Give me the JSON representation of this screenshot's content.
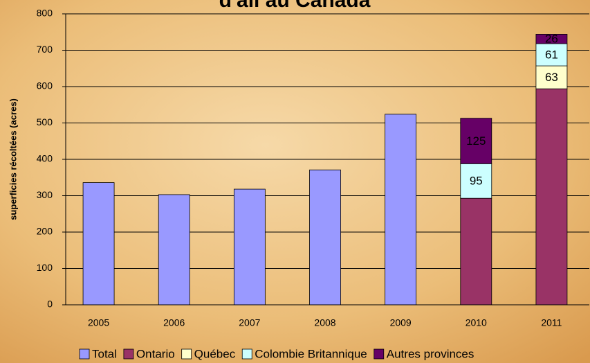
{
  "chart_data": {
    "type": "stacked_bar",
    "title": "d'ail au Canada",
    "y_label": "superficies récoltées (acres)",
    "categories": [
      "2005",
      "2006",
      "2007",
      "2008",
      "2009",
      "2010",
      "2011"
    ],
    "series": [
      {
        "name": "Total",
        "color": "#9999ff",
        "values": [
          336,
          303,
          318,
          371,
          524,
          null,
          null
        ],
        "data_labels": false
      },
      {
        "name": "Ontario",
        "color": "#993366",
        "values": [
          null,
          null,
          null,
          null,
          null,
          293,
          594
        ],
        "data_labels": false
      },
      {
        "name": "Québec",
        "color": "#ffffcc",
        "values": [
          null,
          null,
          null,
          null,
          null,
          null,
          63
        ],
        "data_labels": true
      },
      {
        "name": "Colombie Britannique",
        "color": "#ccffff",
        "values": [
          null,
          null,
          null,
          null,
          null,
          95,
          61
        ],
        "data_labels": true
      },
      {
        "name": "Autres provinces",
        "color": "#660066",
        "values": [
          null,
          null,
          null,
          null,
          null,
          125,
          26
        ],
        "data_labels": true
      }
    ],
    "ylim": [
      0,
      800
    ],
    "yticks": [
      0,
      100,
      200,
      300,
      400,
      500,
      600,
      700,
      800
    ],
    "grid": true,
    "legend": "bottom"
  }
}
